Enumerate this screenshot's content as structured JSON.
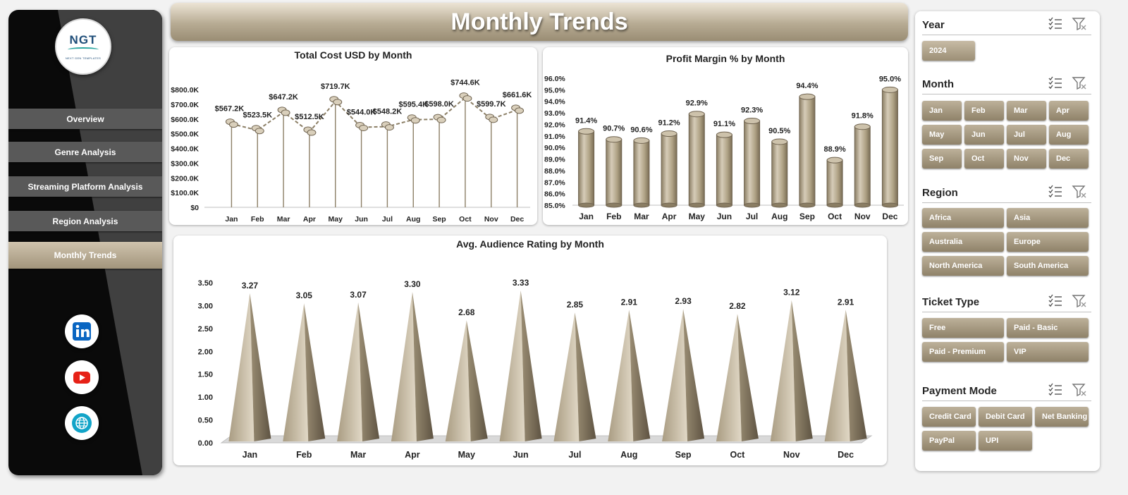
{
  "page_title": "Monthly Trends",
  "logo": {
    "text": "NGT",
    "subtext": "NEXT GEN TEMPLATES"
  },
  "nav": {
    "items": [
      {
        "label": "Overview",
        "active": false
      },
      {
        "label": "Genre Analysis",
        "active": false
      },
      {
        "label": "Streaming Platform Analysis",
        "active": false
      },
      {
        "label": "Region Analysis",
        "active": false
      },
      {
        "label": "Monthly Trends",
        "active": true
      }
    ]
  },
  "social": [
    "linkedin-icon",
    "youtube-icon",
    "globe-icon"
  ],
  "colors": {
    "accent": "#a99c82",
    "accent_dark": "#8a7d63",
    "nav_bg": "#0a0a0a",
    "nav_btn": "#595959"
  },
  "slicers": {
    "year": {
      "title": "Year",
      "items": [
        "2024"
      ]
    },
    "month": {
      "title": "Month",
      "items": [
        "Jan",
        "Feb",
        "Mar",
        "Apr",
        "May",
        "Jun",
        "Jul",
        "Aug",
        "Sep",
        "Oct",
        "Nov",
        "Dec"
      ]
    },
    "region": {
      "title": "Region",
      "items": [
        "Africa",
        "Asia",
        "Australia",
        "Europe",
        "North America",
        "South America"
      ]
    },
    "ticket": {
      "title": "Ticket Type",
      "items": [
        "Free",
        "Paid - Basic",
        "Paid - Premium",
        "VIP"
      ]
    },
    "payment": {
      "title": "Payment Mode",
      "items": [
        "Credit Card",
        "Debit Card",
        "Net Banking",
        "PayPal",
        "UPI"
      ]
    }
  },
  "chart_data": [
    {
      "type": "line",
      "title": "Total Cost USD by Month",
      "categories": [
        "Jan",
        "Feb",
        "Mar",
        "Apr",
        "May",
        "Jun",
        "Jul",
        "Aug",
        "Sep",
        "Oct",
        "Nov",
        "Dec"
      ],
      "values": [
        567.2,
        523.5,
        647.2,
        512.5,
        719.7,
        544.0,
        548.2,
        595.4,
        598.0,
        744.6,
        599.7,
        661.6
      ],
      "data_labels": [
        "$567.2K",
        "$523.5K",
        "$647.2K",
        "$512.5K",
        "$719.7K",
        "$544.0K",
        "$548.2K",
        "$595.4K",
        "$598.0K",
        "$744.6K",
        "$599.7K",
        "$661.6K"
      ],
      "ylim": [
        0,
        800
      ],
      "yticks": [
        "$0",
        "$100.0K",
        "$200.0K",
        "$300.0K",
        "$400.0K",
        "$500.0K",
        "$600.0K",
        "$700.0K",
        "$800.0K"
      ]
    },
    {
      "type": "bar",
      "title": "Profit Margin % by Month",
      "categories": [
        "Jan",
        "Feb",
        "Mar",
        "Apr",
        "May",
        "Jun",
        "Jul",
        "Aug",
        "Sep",
        "Oct",
        "Nov",
        "Dec"
      ],
      "values": [
        91.4,
        90.7,
        90.6,
        91.2,
        92.9,
        91.1,
        92.3,
        90.5,
        94.4,
        88.9,
        91.8,
        95.0
      ],
      "data_labels": [
        "91.4%",
        "90.7%",
        "90.6%",
        "91.2%",
        "92.9%",
        "91.1%",
        "92.3%",
        "90.5%",
        "94.4%",
        "88.9%",
        "91.8%",
        "95.0%"
      ],
      "ylim": [
        85,
        96
      ],
      "yticks": [
        "85.0%",
        "86.0%",
        "87.0%",
        "88.0%",
        "89.0%",
        "90.0%",
        "91.0%",
        "92.0%",
        "93.0%",
        "94.0%",
        "95.0%",
        "96.0%"
      ]
    },
    {
      "type": "bar",
      "title": "Avg. Audience Rating by Month",
      "categories": [
        "Jan",
        "Feb",
        "Mar",
        "Apr",
        "May",
        "Jun",
        "Jul",
        "Aug",
        "Sep",
        "Oct",
        "Nov",
        "Dec"
      ],
      "values": [
        3.27,
        3.05,
        3.07,
        3.3,
        2.68,
        3.33,
        2.85,
        2.91,
        2.93,
        2.82,
        3.12,
        2.91
      ],
      "data_labels": [
        "3.27",
        "3.05",
        "3.07",
        "3.30",
        "2.68",
        "3.33",
        "2.85",
        "2.91",
        "2.93",
        "2.82",
        "3.12",
        "2.91"
      ],
      "ylim": [
        0,
        3.5
      ],
      "yticks": [
        "0.00",
        "0.50",
        "1.00",
        "1.50",
        "2.00",
        "2.50",
        "3.00",
        "3.50"
      ]
    }
  ]
}
